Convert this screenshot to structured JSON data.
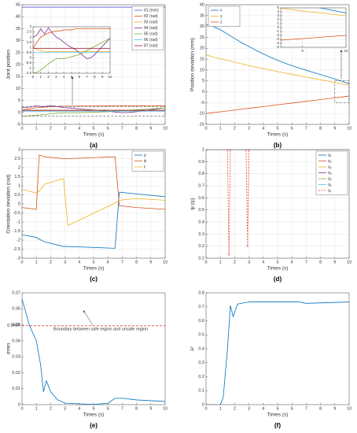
{
  "chart_data": [
    {
      "type": "line",
      "caption": "(a)",
      "xlabel": "Times (s)",
      "ylabel": "Joint position",
      "xlim": [
        0,
        10
      ],
      "ylim": [
        -5,
        45
      ],
      "xticks": [
        0,
        1,
        2,
        3,
        4,
        5,
        6,
        7,
        8,
        9,
        10
      ],
      "yticks": [
        -5,
        0,
        5,
        10,
        15,
        20,
        25,
        30,
        35,
        40,
        45
      ],
      "grid": true,
      "legend": "upper right",
      "x": [
        0,
        0.5,
        1,
        1.5,
        2,
        2.5,
        3,
        3.5,
        4,
        4.5,
        5,
        5.5,
        6,
        6.5,
        7,
        7.5,
        8,
        8.5,
        9,
        9.5,
        10
      ],
      "series": [
        {
          "name": "θ1 (mm)",
          "color": "#5a5ad6",
          "values": [
            44,
            44,
            44,
            44,
            44,
            44,
            44,
            44,
            44,
            44,
            44,
            44,
            44,
            44,
            44,
            44,
            44,
            44,
            44,
            44,
            44
          ]
        },
        {
          "name": "θ2 (rad)",
          "color": "#D95319",
          "values": [
            1,
            1.5,
            2,
            2.2,
            2.4,
            2.5,
            2.6,
            2.6,
            2.7,
            2.7,
            2.7,
            2.8,
            2.8,
            2.8,
            2.8,
            2.8,
            2.8,
            2.8,
            2.8,
            2.8,
            2.8
          ]
        },
        {
          "name": "θ3 (rad)",
          "color": "#EDB120",
          "values": [
            1,
            0.8,
            0.7,
            0.6,
            0.6,
            0.6,
            0.6,
            0.6,
            0.6,
            0.6,
            0.6,
            0.6,
            0.6,
            0.6,
            0.6,
            0.6,
            0.6,
            0.6,
            0.6,
            0.6,
            0.6
          ]
        },
        {
          "name": "θ4 (rad)",
          "color": "#7E2F8E",
          "values": [
            2,
            2.2,
            2.8,
            2.3,
            2.9,
            2.4,
            2,
            1.8,
            1.5,
            1.2,
            1,
            0.8,
            0.5,
            0.2,
            -0.1,
            0,
            0.3,
            0.7,
            1.1,
            1.5,
            1.9
          ]
        },
        {
          "name": "θ5 (rad)",
          "color": "#77AC30",
          "values": [
            -1.5,
            -1.4,
            -1.2,
            -0.9,
            -0.6,
            -0.3,
            -0.1,
            -0.1,
            -0.1,
            0,
            0.1,
            0.2,
            0.3,
            0.5,
            0.7,
            0.9,
            1.1,
            1.3,
            1.5,
            1.7,
            1.9
          ]
        },
        {
          "name": "θ6 (rad)",
          "color": "#4DBEEE",
          "values": [
            0.5,
            0.5,
            0.5,
            0.5,
            0.5,
            0.5,
            0.5,
            0.5,
            0.5,
            0.5,
            0.5,
            0.5,
            0.5,
            0.5,
            0.5,
            0.5,
            0.5,
            0.5,
            0.5,
            0.5,
            0.5
          ]
        },
        {
          "name": "θ7 (rad)",
          "color": "#A2142F",
          "values": [
            0.9,
            0.9,
            0.9,
            0.9,
            0.9,
            0.9,
            0.9,
            0.9,
            0.9,
            0.9,
            0.9,
            0.9,
            0.9,
            0.9,
            0.9,
            0.9,
            0.9,
            0.9,
            0.9,
            0.9,
            0.9
          ]
        }
      ],
      "inset": {
        "xlim": [
          0,
          10
        ],
        "ylim": [
          -1.5,
          3
        ],
        "xticks": [
          0,
          1,
          2,
          3,
          4,
          5,
          6,
          7,
          8,
          9,
          10
        ],
        "yticks": [
          -1.5,
          -1,
          -0.5,
          0,
          0.5,
          1,
          1.5,
          2,
          2.5,
          3
        ],
        "grid": true
      }
    },
    {
      "type": "line",
      "caption": "(b)",
      "xlabel": "Times (s)",
      "ylabel": "Position deviation (mm)",
      "xlim": [
        0,
        10
      ],
      "ylim": [
        -15,
        40
      ],
      "xticks": [
        0,
        1,
        2,
        3,
        4,
        5,
        6,
        7,
        8,
        9,
        10
      ],
      "yticks": [
        -15,
        -10,
        -5,
        0,
        5,
        10,
        15,
        20,
        25,
        30,
        35,
        40
      ],
      "grid": true,
      "legend": "upper left",
      "x": [
        0,
        0.5,
        1,
        1.5,
        2,
        2.5,
        3,
        3.5,
        4,
        4.5,
        5,
        5.5,
        6,
        6.5,
        7,
        7.5,
        8,
        8.5,
        9,
        9.5,
        10
      ],
      "series": [
        {
          "name": "x",
          "color": "#0072BD",
          "values": [
            31,
            30,
            28.5,
            26.5,
            24.5,
            22.5,
            20.8,
            19,
            17.4,
            15.9,
            14.5,
            13.2,
            12,
            10.9,
            9.9,
            8.9,
            7.9,
            6.9,
            5.9,
            4.8,
            3.7
          ]
        },
        {
          "name": "y",
          "color": "#EDB120",
          "values": [
            17,
            16,
            15.2,
            14.4,
            13.6,
            12.8,
            12,
            11.3,
            10.6,
            10,
            9.3,
            8.6,
            8,
            7.4,
            6.8,
            6.1,
            5.5,
            4.9,
            4.2,
            3.6,
            3
          ]
        },
        {
          "name": "z",
          "color": "#D95319",
          "values": [
            -10,
            -9.6,
            -9.2,
            -8.8,
            -8.4,
            -8,
            -7.6,
            -7.2,
            -6.8,
            -6.4,
            -6,
            -5.6,
            -5.2,
            -4.8,
            -4.4,
            -4,
            -3.6,
            -3.2,
            -2.8,
            -2.4,
            -2
          ]
        }
      ],
      "inset": {
        "xlim": [
          8.5,
          10
        ],
        "ylim": [
          -5,
          5
        ],
        "xticks": [
          9,
          10
        ],
        "yticks": [
          -5,
          -4,
          -3,
          -2,
          -1,
          0,
          1,
          2,
          3,
          4,
          5
        ],
        "grid": true
      }
    },
    {
      "type": "line",
      "caption": "(c)",
      "xlabel": "Times (s)",
      "ylabel": "Orientation deviation (rad)",
      "xlim": [
        0,
        10
      ],
      "ylim": [
        -3,
        3
      ],
      "xticks": [
        0,
        1,
        2,
        3,
        4,
        5,
        6,
        7,
        8,
        9,
        10
      ],
      "yticks": [
        -3,
        -2.5,
        -2,
        -1.5,
        -1,
        -0.5,
        0,
        0.5,
        1,
        1.5,
        2,
        2.5,
        3
      ],
      "grid": true,
      "legend": "upper right",
      "x": [
        0,
        1,
        1.2,
        1.6,
        2.9,
        3.2,
        6.5,
        6.8,
        8,
        10
      ],
      "series": [
        {
          "name": "ρ",
          "color": "#0072BD",
          "values": [
            -1.7,
            -1.85,
            -1.95,
            -2.1,
            -2.35,
            -2.35,
            -2.45,
            0.65,
            0.55,
            0.4
          ]
        },
        {
          "name": "ϕ",
          "color": "#D95319",
          "values": [
            -0.2,
            -0.3,
            2.7,
            2.6,
            2.5,
            2.5,
            2.6,
            -0.1,
            -0.2,
            -0.3
          ]
        },
        {
          "name": "ε",
          "color": "#EDB120",
          "values": [
            0.8,
            0.6,
            0.7,
            1.1,
            1.4,
            -1.2,
            0.05,
            0.2,
            0.3,
            0.2
          ]
        }
      ]
    },
    {
      "type": "line",
      "caption": "(d)",
      "xlabel": "Times (s)",
      "ylabel": "ψ (qᵢ)",
      "xlim": [
        0,
        10
      ],
      "ylim": [
        0.1,
        1
      ],
      "xticks": [
        0,
        1,
        2,
        3,
        4,
        5,
        6,
        7,
        8,
        9,
        10
      ],
      "yticks": [
        0.1,
        0.2,
        0.3,
        0.4,
        0.5,
        0.6,
        0.7,
        0.8,
        0.9,
        1
      ],
      "grid": true,
      "legend": "upper right",
      "x": [
        0,
        1.5,
        1.6,
        1.7,
        2.8,
        2.9,
        3,
        10
      ],
      "series": [
        {
          "name": "q₁",
          "color": "#0072BD",
          "values": [
            1,
            1,
            1,
            1,
            1,
            1,
            1,
            1
          ]
        },
        {
          "name": "q₂",
          "color": "#D95319",
          "values": [
            1,
            1,
            1,
            1,
            1,
            1,
            1,
            1
          ]
        },
        {
          "name": "q₃",
          "color": "#EDB120",
          "values": [
            1,
            1,
            1,
            1,
            1,
            1,
            1,
            1
          ]
        },
        {
          "name": "q₄",
          "color": "#7E2F8E",
          "values": [
            1,
            1,
            1,
            1,
            1,
            1,
            1,
            1
          ]
        },
        {
          "name": "q₅",
          "color": "#77AC30",
          "values": [
            1,
            1,
            1,
            1,
            1,
            1,
            1,
            1
          ]
        },
        {
          "name": "q₆",
          "color": "#4DBEEE",
          "values": [
            1,
            1,
            1,
            1,
            1,
            1,
            1,
            1
          ]
        },
        {
          "name": "q₇",
          "color": "#e8413b",
          "dash": true,
          "values": [
            1,
            1,
            0.13,
            1,
            1,
            0.2,
            1,
            1
          ]
        }
      ]
    },
    {
      "type": "line",
      "caption": "(e)",
      "xlabel": "Times (s)",
      "ylabel": "σmin",
      "xlim": [
        0,
        10
      ],
      "ylim": [
        0,
        0.07
      ],
      "xticks": [
        0,
        1,
        2,
        3,
        4,
        5,
        6,
        7,
        8,
        9,
        10
      ],
      "yticks": [
        0,
        0.01,
        0.02,
        0.03,
        0.04,
        0.0494,
        0.05,
        0.06,
        0.07
      ],
      "grid": false,
      "threshold": 0.0494,
      "threshold_color": "#e8413b",
      "annotation": "Boundary between safe region and unsafe region",
      "x": [
        0,
        0.2,
        0.5,
        1,
        1.3,
        1.5,
        1.7,
        2,
        2.5,
        3,
        4,
        5,
        6,
        6.5,
        7,
        8,
        10
      ],
      "series": [
        {
          "color": "#0072BD",
          "values": [
            0.066,
            0.06,
            0.05,
            0.04,
            0.025,
            0.008,
            0.015,
            0.008,
            0.003,
            0.001,
            0.0005,
            0.0002,
            0.0008,
            0.004,
            0.004,
            0.003,
            0.002
          ]
        }
      ]
    },
    {
      "type": "line",
      "caption": "(f)",
      "xlabel": "Times (s)",
      "ylabel": "λ²",
      "xlim": [
        0,
        10
      ],
      "ylim": [
        0,
        0.8
      ],
      "xticks": [
        0,
        1,
        2,
        3,
        4,
        5,
        6,
        7,
        8,
        9,
        10
      ],
      "yticks": [
        0,
        0.1,
        0.2,
        0.3,
        0.4,
        0.5,
        0.6,
        0.7,
        0.8
      ],
      "grid": false,
      "x": [
        0,
        1,
        1.2,
        1.5,
        1.7,
        1.9,
        2.2,
        3,
        6.5,
        7,
        10
      ],
      "series": [
        {
          "color": "#0072BD",
          "values": [
            0,
            0,
            0.05,
            0.4,
            0.71,
            0.63,
            0.72,
            0.735,
            0.735,
            0.725,
            0.735
          ]
        }
      ]
    }
  ]
}
